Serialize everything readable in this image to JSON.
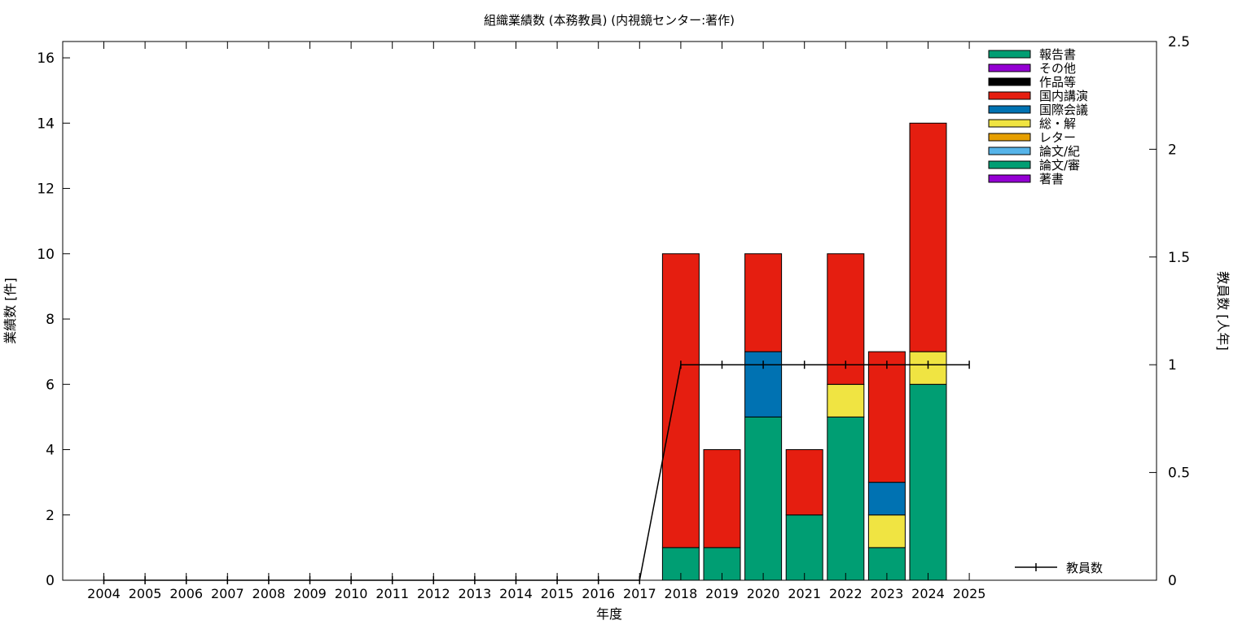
{
  "chart_data": {
    "type": "bar",
    "stacked": true,
    "title": "組織業績数 (本務教員) (内視鏡センター:著作)",
    "xlabel": "年度",
    "ylabel": "業績数 [件]",
    "y2label": "教員数 [人年]",
    "categories": [
      "2004",
      "2005",
      "2006",
      "2007",
      "2008",
      "2009",
      "2010",
      "2011",
      "2012",
      "2013",
      "2014",
      "2015",
      "2016",
      "2017",
      "2018",
      "2019",
      "2020",
      "2021",
      "2022",
      "2023",
      "2024",
      "2025"
    ],
    "ylim": [
      0,
      16.5
    ],
    "y2lim": [
      0,
      2.5
    ],
    "yticks": [
      0,
      2,
      4,
      6,
      8,
      10,
      12,
      14,
      16
    ],
    "y2ticks": [
      0,
      0.5,
      1,
      1.5,
      2,
      2.5
    ],
    "y2tick_labels": [
      "0",
      "0.5",
      "1",
      "1.5",
      "2",
      "2.5"
    ],
    "grid": false,
    "legend_position": "top-right",
    "series": [
      {
        "name": "報告書",
        "color": "#009e73",
        "values": [
          0,
          0,
          0,
          0,
          0,
          0,
          0,
          0,
          0,
          0,
          0,
          0,
          0,
          0,
          0,
          0,
          0,
          0,
          0,
          0,
          0,
          0
        ]
      },
      {
        "name": "その他",
        "color": "#9400d3",
        "values": [
          0,
          0,
          0,
          0,
          0,
          0,
          0,
          0,
          0,
          0,
          0,
          0,
          0,
          0,
          0,
          0,
          0,
          0,
          0,
          0,
          0,
          0
        ]
      },
      {
        "name": "作品等",
        "color": "#000000",
        "values": [
          0,
          0,
          0,
          0,
          0,
          0,
          0,
          0,
          0,
          0,
          0,
          0,
          0,
          0,
          0,
          0,
          0,
          0,
          0,
          0,
          0,
          0
        ]
      },
      {
        "name": "国内講演",
        "color": "#e51e10",
        "values": [
          0,
          0,
          0,
          0,
          0,
          0,
          0,
          0,
          0,
          0,
          0,
          0,
          0,
          0,
          9,
          3,
          3,
          2,
          4,
          4,
          7,
          0
        ]
      },
      {
        "name": "国際会議",
        "color": "#0072b2",
        "values": [
          0,
          0,
          0,
          0,
          0,
          0,
          0,
          0,
          0,
          0,
          0,
          0,
          0,
          0,
          0,
          0,
          2,
          0,
          0,
          1,
          0,
          0
        ]
      },
      {
        "name": "総・解",
        "color": "#f0e442",
        "values": [
          0,
          0,
          0,
          0,
          0,
          0,
          0,
          0,
          0,
          0,
          0,
          0,
          0,
          0,
          0,
          0,
          0,
          0,
          1,
          1,
          1,
          0
        ]
      },
      {
        "name": "レター",
        "color": "#e69f00",
        "values": [
          0,
          0,
          0,
          0,
          0,
          0,
          0,
          0,
          0,
          0,
          0,
          0,
          0,
          0,
          0,
          0,
          0,
          0,
          0,
          0,
          0,
          0
        ]
      },
      {
        "name": "論文/紀",
        "color": "#56b4e9",
        "values": [
          0,
          0,
          0,
          0,
          0,
          0,
          0,
          0,
          0,
          0,
          0,
          0,
          0,
          0,
          0,
          0,
          0,
          0,
          0,
          0,
          0,
          0
        ]
      },
      {
        "name": "論文/審",
        "color": "#009e73",
        "values": [
          0,
          0,
          0,
          0,
          0,
          0,
          0,
          0,
          0,
          0,
          0,
          0,
          0,
          0,
          1,
          1,
          5,
          2,
          5,
          1,
          6,
          0
        ]
      },
      {
        "name": "著書",
        "color": "#9400d3",
        "values": [
          0,
          0,
          0,
          0,
          0,
          0,
          0,
          0,
          0,
          0,
          0,
          0,
          0,
          0,
          0,
          0,
          0,
          0,
          0,
          0,
          0,
          0
        ]
      }
    ],
    "line_series": {
      "name": "教員数",
      "axis": "y2",
      "color": "#000000",
      "values": [
        0,
        0,
        0,
        0,
        0,
        0,
        0,
        0,
        0,
        0,
        0,
        0,
        0,
        0,
        1,
        1,
        1,
        1,
        1,
        1,
        1,
        1
      ]
    }
  }
}
